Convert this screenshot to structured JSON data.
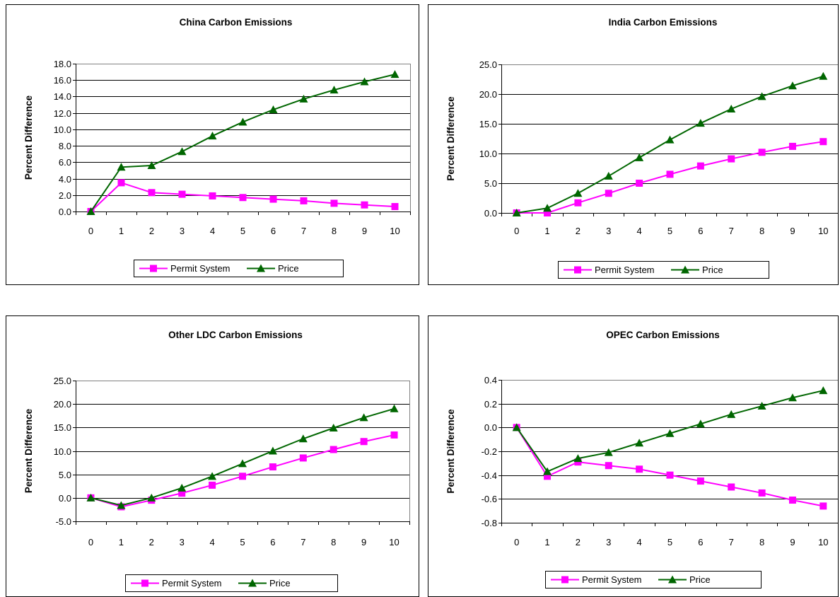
{
  "colors": {
    "permit": "#ff00ff",
    "price": "#006600",
    "background": "#ffffff",
    "axis": "#000000"
  },
  "chart_data": [
    {
      "type": "line",
      "title": "China Carbon Emissions",
      "xlabel": "",
      "ylabel": "Percent Difference",
      "categories": [
        "0",
        "1",
        "2",
        "3",
        "4",
        "5",
        "6",
        "7",
        "8",
        "9",
        "10"
      ],
      "ylim": [
        0,
        18
      ],
      "ystep": 2,
      "ydecimals": 1,
      "yticks": [
        "0.0",
        "2.0",
        "4.0",
        "6.0",
        "8.0",
        "10.0",
        "12.0",
        "14.0",
        "16.0",
        "18.0"
      ],
      "grid": true,
      "legend": "bottom",
      "series": [
        {
          "name": "Permit System",
          "marker": "square",
          "values": [
            0.0,
            3.5,
            2.3,
            2.1,
            1.9,
            1.7,
            1.5,
            1.3,
            1.0,
            0.8,
            0.6
          ]
        },
        {
          "name": "Price",
          "marker": "triangle",
          "values": [
            0.0,
            5.4,
            5.6,
            7.3,
            9.2,
            10.9,
            12.4,
            13.7,
            14.8,
            15.8,
            16.7
          ]
        }
      ]
    },
    {
      "type": "line",
      "title": "India Carbon Emissions",
      "xlabel": "",
      "ylabel": "Percent Difference",
      "categories": [
        "0",
        "1",
        "2",
        "3",
        "4",
        "5",
        "6",
        "7",
        "8",
        "9",
        "10"
      ],
      "ylim": [
        0,
        25
      ],
      "ystep": 5,
      "ydecimals": 1,
      "yticks": [
        "0.0",
        "5.0",
        "10.0",
        "15.0",
        "20.0",
        "25.0"
      ],
      "grid": true,
      "legend": "bottom",
      "series": [
        {
          "name": "Permit System",
          "marker": "square",
          "values": [
            0.0,
            0.0,
            1.7,
            3.3,
            5.0,
            6.5,
            7.9,
            9.1,
            10.2,
            11.2,
            12.0
          ]
        },
        {
          "name": "Price",
          "marker": "triangle",
          "values": [
            0.0,
            0.8,
            3.3,
            6.2,
            9.3,
            12.3,
            15.1,
            17.5,
            19.6,
            21.4,
            23.0
          ]
        }
      ]
    },
    {
      "type": "line",
      "title": "Other LDC Carbon Emissions",
      "xlabel": "",
      "ylabel": "Percent Difference",
      "categories": [
        "0",
        "1",
        "2",
        "3",
        "4",
        "5",
        "6",
        "7",
        "8",
        "9",
        "10"
      ],
      "ylim": [
        -5,
        25
      ],
      "ystep": 5,
      "ydecimals": 1,
      "yticks": [
        "-5.0",
        "0.0",
        "5.0",
        "10.0",
        "15.0",
        "20.0",
        "25.0"
      ],
      "grid": true,
      "legend": "bottom",
      "series": [
        {
          "name": "Permit System",
          "marker": "square",
          "values": [
            0.0,
            -1.9,
            -0.5,
            1.0,
            2.7,
            4.6,
            6.6,
            8.5,
            10.3,
            12.0,
            13.4
          ]
        },
        {
          "name": "Price",
          "marker": "triangle",
          "values": [
            0.0,
            -1.6,
            0.0,
            2.1,
            4.6,
            7.3,
            10.0,
            12.6,
            14.9,
            17.1,
            19.0
          ]
        }
      ]
    },
    {
      "type": "line",
      "title": "OPEC Carbon Emissions",
      "xlabel": "",
      "ylabel": "Percent Difference",
      "categories": [
        "0",
        "1",
        "2",
        "3",
        "4",
        "5",
        "6",
        "7",
        "8",
        "9",
        "10"
      ],
      "ylim": [
        -0.8,
        0.4
      ],
      "ystep": 0.2,
      "ydecimals": 1,
      "yticks": [
        "-0.8",
        "-0.6",
        "-0.4",
        "-0.2",
        "0.0",
        "0.2",
        "0.4"
      ],
      "grid": true,
      "legend": "bottom",
      "series": [
        {
          "name": "Permit System",
          "marker": "square",
          "values": [
            0.0,
            -0.41,
            -0.29,
            -0.32,
            -0.35,
            -0.4,
            -0.45,
            -0.5,
            -0.55,
            -0.61,
            -0.66
          ]
        },
        {
          "name": "Price",
          "marker": "triangle",
          "values": [
            0.0,
            -0.37,
            -0.26,
            -0.21,
            -0.13,
            -0.05,
            0.03,
            0.11,
            0.18,
            0.25,
            0.31
          ]
        }
      ]
    }
  ]
}
